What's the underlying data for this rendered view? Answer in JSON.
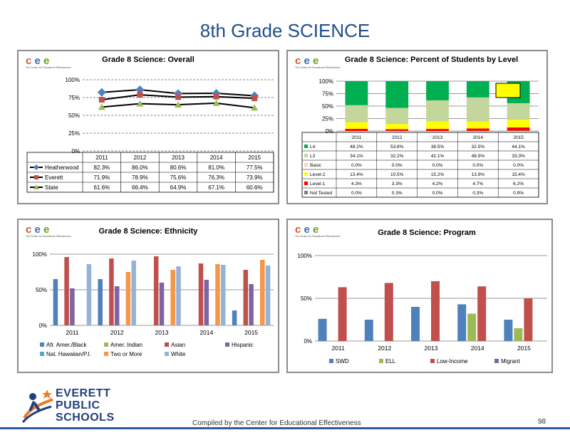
{
  "page": {
    "title": "8th Grade SCIENCE",
    "footer_text": "Compiled  by the Center for Educational Effectiveness",
    "page_number": "98",
    "district_logo_lines": [
      "EVERETT",
      "PUBLIC",
      "SCHOOLS"
    ]
  },
  "logo": {
    "letters": [
      "c",
      "e",
      "e"
    ],
    "tagline": "The Center for Educational Effectiveness"
  },
  "colors": {
    "title_blue": "#1f4e8c",
    "blue": "#4f81bd",
    "red": "#c0504d",
    "green": "#9bbb59",
    "purple": "#8064a2",
    "teal": "#4bacc6",
    "orange": "#f79646",
    "light_blue": "#95b3d7",
    "level_green": "#00b050",
    "level_light_green": "#c3d69b",
    "level_basic": "#fcd5b4",
    "level_yellow": "#ffff00",
    "level_red": "#ff0000",
    "level_not_tested": "#7f7f7f"
  },
  "chart_data": [
    {
      "type": "line",
      "title": "Grade 8 Science: Overall",
      "categories": [
        "2011",
        "2012",
        "2013",
        "2014",
        "2015"
      ],
      "ylim": [
        0,
        100
      ],
      "yticks": [
        "0%",
        "25%",
        "50%",
        "75%",
        "100%"
      ],
      "grid": true,
      "series": [
        {
          "name": "Heatherwood",
          "values": [
            82.3,
            86.0,
            80.6,
            81.0,
            77.5
          ],
          "labels": [
            "82.3%",
            "86.0%",
            "80.6%",
            "81.0%",
            "77.5%"
          ]
        },
        {
          "name": "Everett",
          "values": [
            71.9,
            78.9,
            75.6,
            76.3,
            73.9
          ],
          "labels": [
            "71.9%",
            "78.9%",
            "75.6%",
            "76.3%",
            "73.9%"
          ]
        },
        {
          "name": "State",
          "values": [
            61.6,
            66.4,
            64.9,
            67.1,
            60.6
          ],
          "labels": [
            "61.6%",
            "66.4%",
            "64.9%",
            "67.1%",
            "60.6%"
          ]
        }
      ]
    },
    {
      "type": "bar",
      "stacked": true,
      "title": "Grade 8 Science: Percent of Students by Level",
      "categories": [
        "2011",
        "2012",
        "2013",
        "2014",
        "2015"
      ],
      "ylim": [
        0,
        100
      ],
      "yticks": [
        "0%",
        "25%",
        "50%",
        "75%",
        "100%"
      ],
      "series": [
        {
          "name": "L4",
          "values": [
            48.2,
            53.8,
            38.5,
            32.5,
            44.1
          ],
          "labels": [
            "48.2%",
            "53.8%",
            "38.5%",
            "32.5%",
            "44.1%"
          ]
        },
        {
          "name": "L3",
          "values": [
            34.1,
            32.2,
            42.1,
            48.5,
            33.3
          ],
          "labels": [
            "34.1%",
            "32.2%",
            "42.1%",
            "48.5%",
            "33.3%"
          ]
        },
        {
          "name": "Basic",
          "values": [
            0.0,
            0.0,
            0.0,
            0.0,
            0.0
          ],
          "labels": [
            "0.0%",
            "0.0%",
            "0.0%",
            "0.0%",
            "0.0%"
          ]
        },
        {
          "name": "Level-2",
          "values": [
            13.4,
            10.5,
            15.2,
            13.9,
            15.4
          ],
          "labels": [
            "13.4%",
            "10.5%",
            "15.2%",
            "13.9%",
            "15.4%"
          ]
        },
        {
          "name": "Level-1",
          "values": [
            4.3,
            3.3,
            4.2,
            4.7,
            6.2
          ],
          "labels": [
            "4.3%",
            "3.3%",
            "4.2%",
            "4.7%",
            "6.2%"
          ]
        },
        {
          "name": "Not Tested",
          "values": [
            0.0,
            0.3,
            0.0,
            0.3,
            0.9
          ],
          "labels": [
            "0.0%",
            "0.3%",
            "0.0%",
            "0.3%",
            "0.9%"
          ]
        }
      ]
    },
    {
      "type": "bar",
      "title": "Grade 8 Science: Ethnicity",
      "categories": [
        "2011",
        "2012",
        "2013",
        "2014",
        "2015"
      ],
      "ylim": [
        0,
        100
      ],
      "yticks": [
        "0%",
        "50%",
        "100%"
      ],
      "series": [
        {
          "name": "Afr. Amer./Black",
          "values": [
            65,
            65,
            0,
            0,
            21
          ]
        },
        {
          "name": "Amer. Indian",
          "values": [
            0,
            0,
            0,
            0,
            0
          ]
        },
        {
          "name": "Asian",
          "values": [
            96,
            94,
            97,
            87,
            78
          ]
        },
        {
          "name": "Hispanic",
          "values": [
            52,
            55,
            60,
            64,
            58
          ]
        },
        {
          "name": "Nat. Hawaiian/P.I.",
          "values": [
            0,
            0,
            0,
            0,
            0
          ]
        },
        {
          "name": "Two or More",
          "values": [
            0,
            75,
            78,
            86,
            92
          ]
        },
        {
          "name": "White",
          "values": [
            86,
            91,
            83,
            85,
            84
          ]
        }
      ]
    },
    {
      "type": "bar",
      "title": "Grade 8 Science: Program",
      "categories": [
        "2011",
        "2012",
        "2013",
        "2014",
        "2015"
      ],
      "ylim": [
        0,
        100
      ],
      "yticks": [
        "0%",
        "50%",
        "100%"
      ],
      "series": [
        {
          "name": "SWD",
          "values": [
            26,
            25,
            40,
            43,
            25
          ]
        },
        {
          "name": "ELL",
          "values": [
            0,
            0,
            0,
            32,
            15
          ]
        },
        {
          "name": "Low-Income",
          "values": [
            63,
            68,
            70,
            64,
            50
          ]
        },
        {
          "name": "Migrant",
          "values": [
            0,
            0,
            0,
            0,
            0
          ]
        }
      ]
    }
  ]
}
